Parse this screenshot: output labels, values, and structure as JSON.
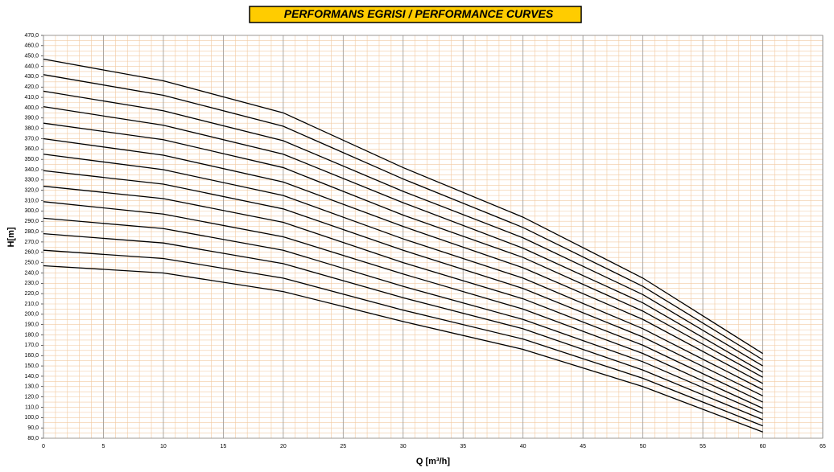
{
  "chart_data": {
    "type": "line",
    "title": "PERFORMANS EGRISI  / PERFORMANCE CURVES",
    "x_label": "Q [m³/h]",
    "y_label": "H[m]",
    "x": [
      0,
      10,
      20,
      30,
      40,
      50,
      60
    ],
    "series": [
      {
        "color": "#000000",
        "values": [
          247,
          240,
          222,
          193,
          166,
          130,
          86
        ]
      },
      {
        "color": "#000000",
        "values": [
          262,
          254,
          235,
          204,
          176,
          138,
          92
        ]
      },
      {
        "color": "#000000",
        "values": [
          278,
          269,
          249,
          216,
          186,
          146,
          98
        ]
      },
      {
        "color": "#000000",
        "values": [
          293,
          283,
          262,
          227,
          195,
          154,
          104
        ]
      },
      {
        "color": "#000000",
        "values": [
          309,
          297,
          275,
          239,
          205,
          162,
          109
        ]
      },
      {
        "color": "#000000",
        "values": [
          324,
          312,
          289,
          250,
          215,
          170,
          115
        ]
      },
      {
        "color": "#000000",
        "values": [
          339,
          326,
          302,
          262,
          225,
          178,
          121
        ]
      },
      {
        "color": "#000000",
        "values": [
          355,
          340,
          315,
          273,
          235,
          186,
          127
        ]
      },
      {
        "color": "#000000",
        "values": [
          370,
          354,
          328,
          285,
          245,
          195,
          133
        ]
      },
      {
        "color": "#000000",
        "values": [
          385,
          369,
          342,
          296,
          255,
          203,
          139
        ]
      },
      {
        "color": "#000000",
        "values": [
          401,
          383,
          355,
          308,
          264,
          211,
          144
        ]
      },
      {
        "color": "#000000",
        "values": [
          416,
          397,
          368,
          319,
          274,
          219,
          150
        ]
      },
      {
        "color": "#000000",
        "values": [
          432,
          412,
          382,
          331,
          284,
          227,
          156
        ]
      },
      {
        "color": "#000000",
        "values": [
          447,
          426,
          395,
          342,
          294,
          235,
          162
        ]
      }
    ],
    "xlim": [
      0,
      65
    ],
    "ylim": [
      80,
      470
    ],
    "xticks": [
      0,
      5,
      10,
      15,
      20,
      25,
      30,
      35,
      40,
      45,
      50,
      55,
      60,
      65
    ],
    "yticks": [
      {
        "value": 80,
        "label": "80,0"
      },
      {
        "value": 90,
        "label": "90,0"
      },
      {
        "value": 100,
        "label": "100,0"
      },
      {
        "value": 110,
        "label": "110,0"
      },
      {
        "value": 120,
        "label": "120,0"
      },
      {
        "value": 130,
        "label": "130,0"
      },
      {
        "value": 140,
        "label": "140,0"
      },
      {
        "value": 150,
        "label": "150,0"
      },
      {
        "value": 160,
        "label": "160,0"
      },
      {
        "value": 170,
        "label": "170,0"
      },
      {
        "value": 180,
        "label": "180,0"
      },
      {
        "value": 190,
        "label": "190,0"
      },
      {
        "value": 200,
        "label": "200,0"
      },
      {
        "value": 210,
        "label": "210,0"
      },
      {
        "value": 220,
        "label": "220,0"
      },
      {
        "value": 230,
        "label": "230,0"
      },
      {
        "value": 240,
        "label": "240,0"
      },
      {
        "value": 250,
        "label": "250,0"
      },
      {
        "value": 260,
        "label": "260,0"
      },
      {
        "value": 270,
        "label": "270,0"
      },
      {
        "value": 280,
        "label": "280,0"
      },
      {
        "value": 290,
        "label": "290,0"
      },
      {
        "value": 300,
        "label": "300,0"
      },
      {
        "value": 310,
        "label": "310,0"
      },
      {
        "value": 320,
        "label": "320,0"
      },
      {
        "value": 330,
        "label": "330,0"
      },
      {
        "value": 340,
        "label": "340,0"
      },
      {
        "value": 350,
        "label": "350,0"
      },
      {
        "value": 360,
        "label": "360,0"
      },
      {
        "value": 370,
        "label": "370,0"
      },
      {
        "value": 380,
        "label": "380,0"
      },
      {
        "value": 390,
        "label": "390,0"
      },
      {
        "value": 400,
        "label": "400,0"
      },
      {
        "value": 410,
        "label": "410,0"
      },
      {
        "value": 420,
        "label": "420,0"
      },
      {
        "value": 430,
        "label": "430,0"
      },
      {
        "value": 440,
        "label": "440,0"
      },
      {
        "value": 450,
        "label": "450,0"
      },
      {
        "value": 460,
        "label": "460,0"
      },
      {
        "value": 470,
        "label": "470,0"
      }
    ],
    "grid": true,
    "grid_color": "#999999",
    "minor_grid_color": "#f2c9a0",
    "title_background": "#ffcc00"
  }
}
